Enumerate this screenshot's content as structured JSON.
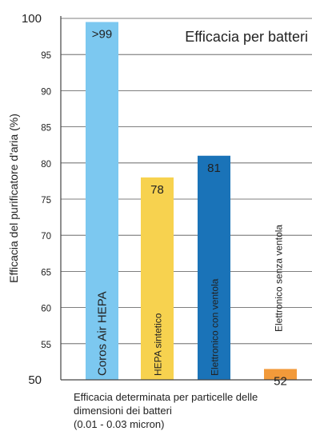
{
  "chart_data": {
    "type": "bar",
    "title": "Efficacia per batteri",
    "ylabel": "Efficacia del purificatore d'aria (%)",
    "xlabel_lines": [
      "Efficacia determinata per particelle delle",
      "dimensioni dei batteri",
      "(0.01 - 0.03 micron)"
    ],
    "ylim": [
      50,
      100
    ],
    "yticks": [
      50,
      55,
      60,
      65,
      70,
      75,
      80,
      85,
      90,
      95,
      100
    ],
    "grid": true,
    "bars": [
      {
        "category": "Coros Air HEPA",
        "value": 99.5,
        "data_label": ">99",
        "color": "#7cc8f0"
      },
      {
        "category": "HEPA sintetico",
        "value": 78,
        "data_label": "78",
        "color": "#f7d24f"
      },
      {
        "category": "Elettronico con ventola",
        "value": 81,
        "data_label": "81",
        "color": "#1a73b8"
      },
      {
        "category": "Elettronico senza ventola",
        "value": 51.5,
        "data_label": "52",
        "color": "#f29a3a"
      }
    ]
  }
}
